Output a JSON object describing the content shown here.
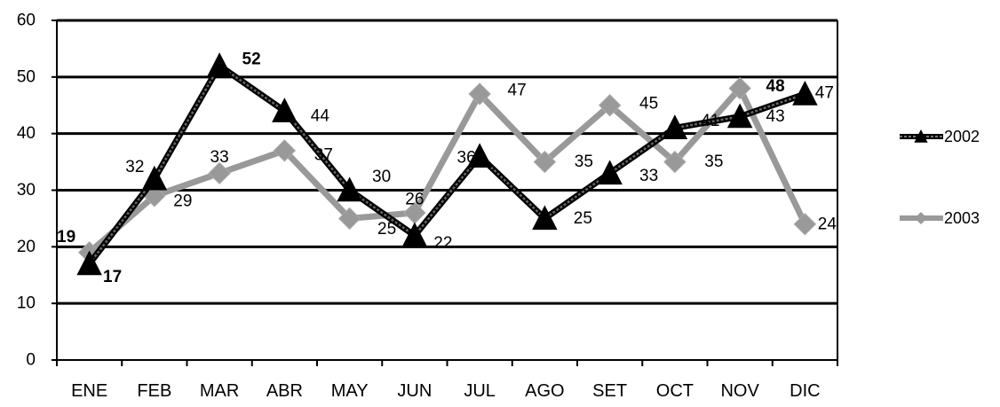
{
  "chart_data": {
    "type": "line",
    "categories": [
      "ENE",
      "FEB",
      "MAR",
      "ABR",
      "MAY",
      "JUN",
      "JUL",
      "AGO",
      "SET",
      "OCT",
      "NOV",
      "DIC"
    ],
    "ylim": [
      0,
      60
    ],
    "yticks": [
      0,
      10,
      20,
      30,
      40,
      50,
      60
    ],
    "grid": true,
    "legend_position": "right",
    "series": [
      {
        "name": "2002",
        "values": [
          17,
          32,
          52,
          44,
          30,
          22,
          36,
          25,
          33,
          41,
          43,
          47
        ],
        "data_labels": [
          "17",
          "32",
          "52",
          "44",
          "30",
          "22",
          "36",
          "25",
          "33",
          "41",
          "43",
          "47"
        ],
        "bold_labels": [
          0,
          2
        ],
        "color": "#000000",
        "marker": "triangle"
      },
      {
        "name": "2003",
        "values": [
          19,
          29,
          33,
          37,
          25,
          26,
          47,
          35,
          45,
          35,
          48,
          24
        ],
        "data_labels": [
          "19",
          "29",
          "33",
          "37",
          "25",
          "26",
          "47",
          "35",
          "45",
          "35",
          "48",
          "24"
        ],
        "bold_labels": [
          0,
          10
        ],
        "color": "#999999",
        "marker": "diamond"
      }
    ]
  }
}
